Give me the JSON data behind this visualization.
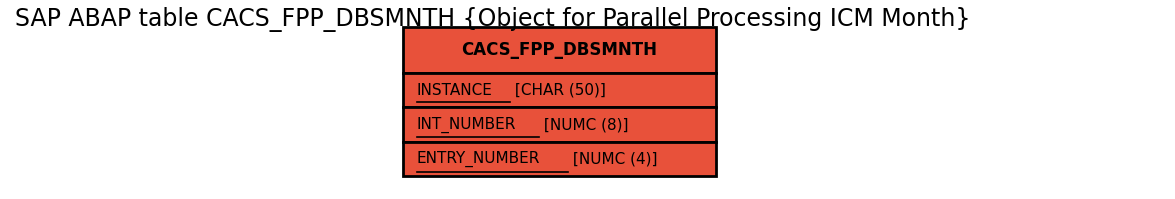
{
  "title": "SAP ABAP table CACS_FPP_DBSMNTH {Object for Parallel Processing ICM Month}",
  "title_fontsize": 17,
  "table_name": "CACS_FPP_DBSMNTH",
  "fields": [
    [
      "INSTANCE",
      " [CHAR (50)]"
    ],
    [
      "INT_NUMBER",
      " [NUMC (8)]"
    ],
    [
      "ENTRY_NUMBER",
      " [NUMC (4)]"
    ]
  ],
  "header_bg": "#E8513A",
  "row_bg": "#E8513A",
  "border_color": "#000000",
  "text_color": "#000000",
  "header_fontsize": 12,
  "field_fontsize": 11,
  "background_color": "#ffffff"
}
